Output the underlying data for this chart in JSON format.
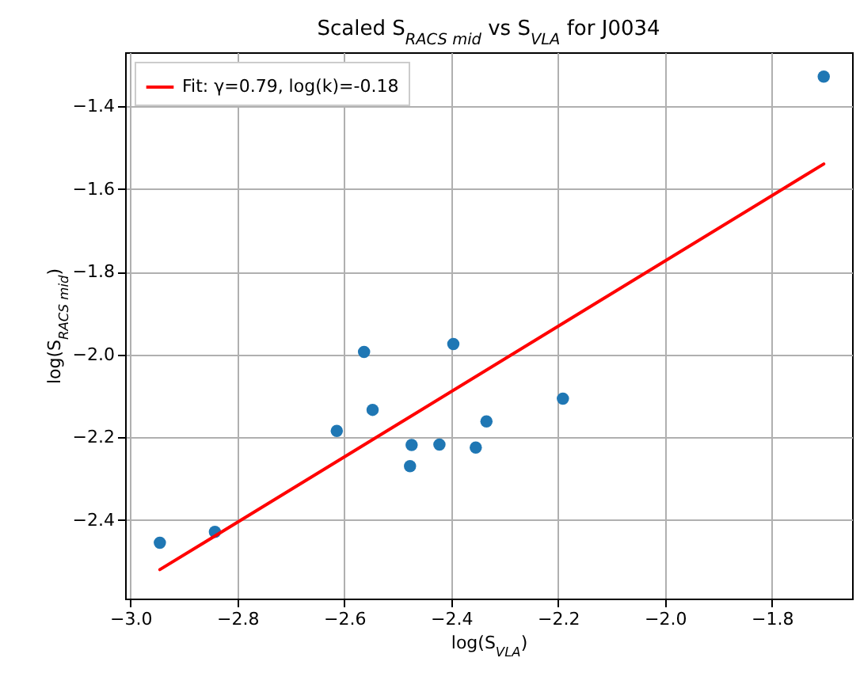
{
  "chart_data": {
    "type": "scatter",
    "title": "Scaled S$_{RACS mid}$ vs S$_{VLA}$ for J0034",
    "xlabel": "log(S$_{VLA}$)",
    "ylabel": "log(S$_{RACS mid}$)",
    "xlim": [
      -3.01,
      -1.65
    ],
    "ylim": [
      -2.59,
      -1.27
    ],
    "xticks": [
      {
        "value": -3.0,
        "label": "−3.0"
      },
      {
        "value": -2.8,
        "label": "−2.8"
      },
      {
        "value": -2.6,
        "label": "−2.6"
      },
      {
        "value": -2.4,
        "label": "−2.4"
      },
      {
        "value": -2.2,
        "label": "−2.2"
      },
      {
        "value": -2.0,
        "label": "−2.0"
      },
      {
        "value": -1.8,
        "label": "−1.8"
      }
    ],
    "yticks": [
      {
        "value": -2.4,
        "label": "−2.4"
      },
      {
        "value": -2.2,
        "label": "−2.2"
      },
      {
        "value": -2.0,
        "label": "−2.0"
      },
      {
        "value": -1.8,
        "label": "−1.8"
      },
      {
        "value": -1.6,
        "label": "−1.6"
      },
      {
        "value": -1.4,
        "label": "−1.4"
      }
    ],
    "grid": true,
    "legend": "top left",
    "series": [
      {
        "marker": "circle",
        "color": "#1f77b4",
        "x": [
          -2.945,
          -2.842,
          -2.614,
          -2.563,
          -2.547,
          -2.474,
          -2.477,
          -2.422,
          -2.396,
          -2.354,
          -2.334,
          -2.191,
          -1.703
        ],
        "values": [
          -2.455,
          -2.429,
          -2.185,
          -1.994,
          -2.134,
          -2.219,
          -2.27,
          -2.218,
          -1.975,
          -2.225,
          -2.162,
          -2.107,
          -1.329
        ]
      },
      {
        "type": "line",
        "name": "Fit: γ=0.79, log(k)=-0.18",
        "color": "#ff0000",
        "line_style": "solid",
        "x": [
          -2.945,
          -1.703
        ],
        "values": [
          -2.52,
          -1.54
        ]
      }
    ]
  }
}
